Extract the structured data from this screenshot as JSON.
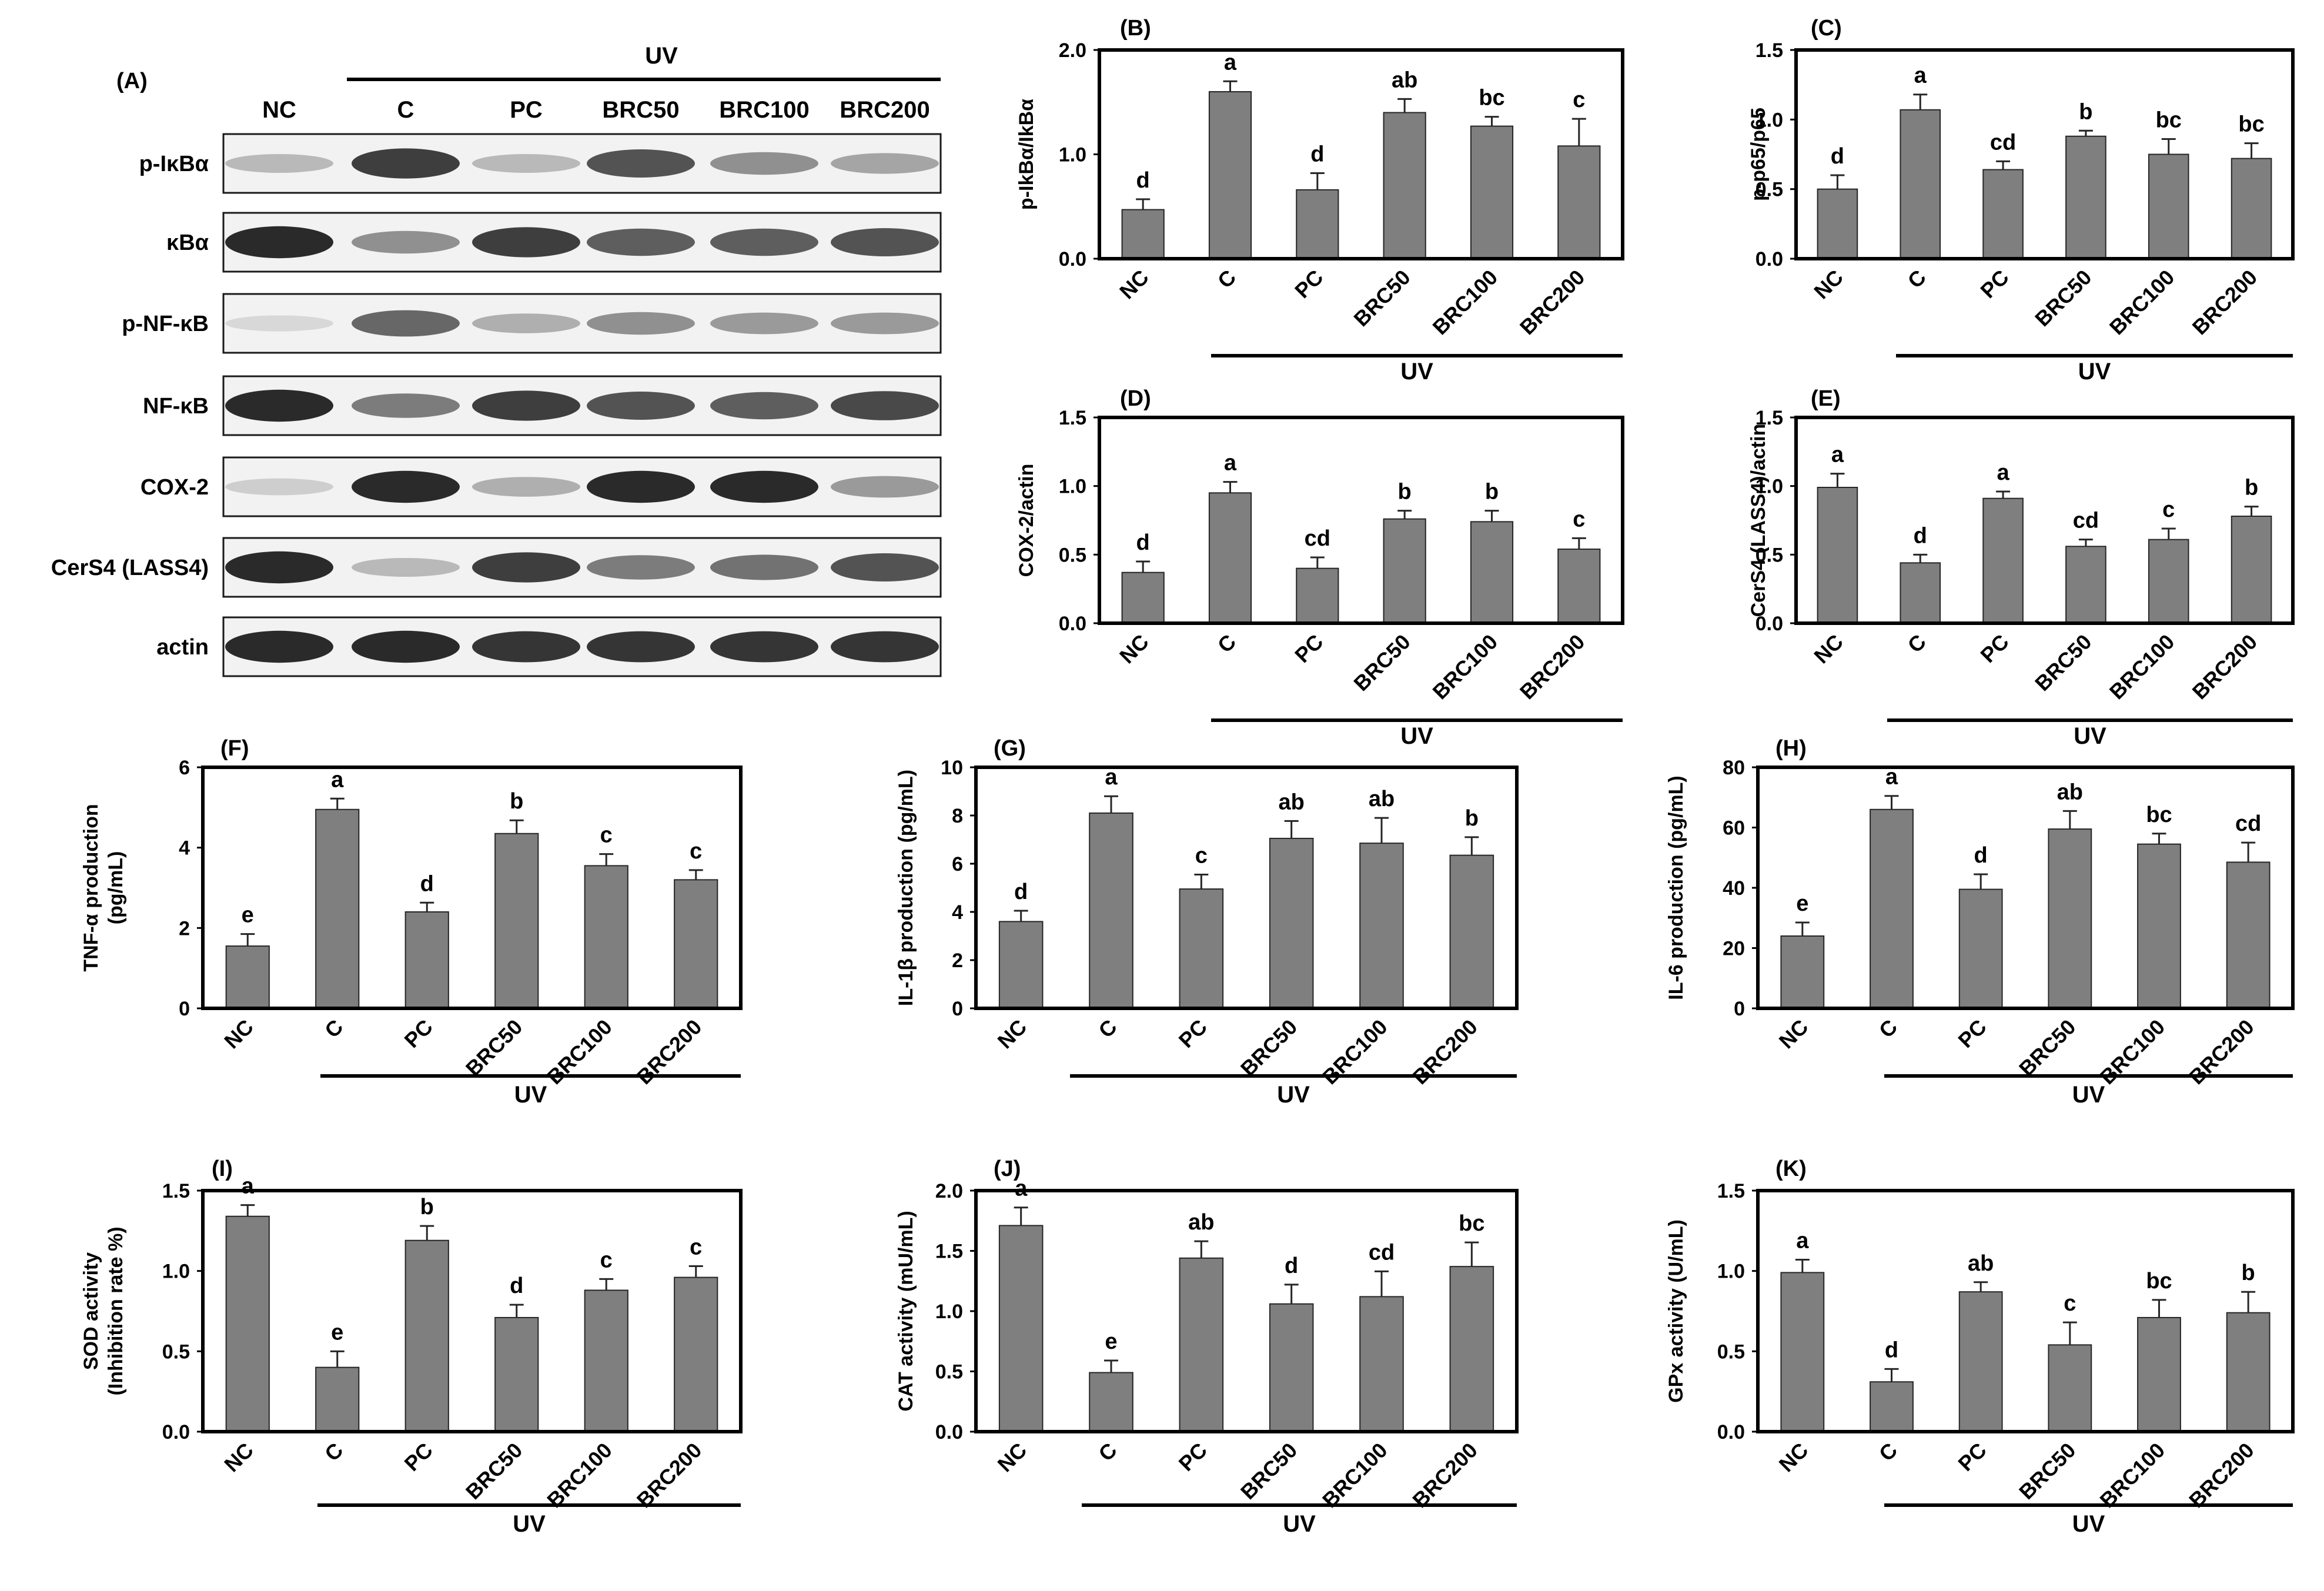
{
  "blot": {
    "panel_label": "(A)",
    "uv_label": "UV",
    "lanes": [
      "NC",
      "C",
      "PC",
      "BRC50",
      "BRC100",
      "BRC200"
    ],
    "rows": [
      {
        "label": "p-IκBα",
        "intensity": [
          0.25,
          0.85,
          0.25,
          0.75,
          0.45,
          0.35
        ]
      },
      {
        "label": "κBα",
        "intensity": [
          0.95,
          0.45,
          0.85,
          0.7,
          0.7,
          0.75
        ]
      },
      {
        "label": "p-NF-κB",
        "intensity": [
          0.1,
          0.65,
          0.3,
          0.45,
          0.4,
          0.4
        ]
      },
      {
        "label": "NF-κB",
        "intensity": [
          0.95,
          0.55,
          0.85,
          0.75,
          0.7,
          0.8
        ]
      },
      {
        "label": "COX-2",
        "intensity": [
          0.15,
          0.95,
          0.3,
          0.95,
          0.95,
          0.4
        ]
      },
      {
        "label": "CerS4 (LASS4)",
        "intensity": [
          0.95,
          0.25,
          0.85,
          0.55,
          0.6,
          0.75
        ]
      },
      {
        "label": "actin",
        "intensity": [
          0.95,
          0.95,
          0.9,
          0.9,
          0.9,
          0.9
        ]
      }
    ]
  },
  "chart_data": [
    {
      "panel": "(B)",
      "type": "bar",
      "ylabel": "p-IkBα/IkBα",
      "ylim": [
        0,
        2.0
      ],
      "yticks": [
        "0.0",
        "1.0",
        "2.0"
      ],
      "categories": [
        "NC",
        "C",
        "PC",
        "BRC50",
        "BRC100",
        "BRC200"
      ],
      "values": [
        0.47,
        1.6,
        0.66,
        1.4,
        1.27,
        1.08
      ],
      "errors": [
        0.1,
        0.1,
        0.16,
        0.13,
        0.09,
        0.26
      ],
      "letters": [
        "d",
        "a",
        "d",
        "ab",
        "bc",
        "c"
      ],
      "group_label": "UV"
    },
    {
      "panel": "(C)",
      "type": "bar",
      "ylabel": "p-p65/p65",
      "ylim": [
        0,
        1.5
      ],
      "yticks": [
        "0.0",
        "0.5",
        "1.0",
        "1.5"
      ],
      "categories": [
        "NC",
        "C",
        "PC",
        "BRC50",
        "BRC100",
        "BRC200"
      ],
      "values": [
        0.5,
        1.07,
        0.64,
        0.88,
        0.75,
        0.72
      ],
      "errors": [
        0.1,
        0.11,
        0.06,
        0.04,
        0.11,
        0.11
      ],
      "letters": [
        "d",
        "a",
        "cd",
        "b",
        "bc",
        "bc"
      ],
      "group_label": "UV"
    },
    {
      "panel": "(D)",
      "type": "bar",
      "ylabel": "COX-2/actin",
      "ylim": [
        0,
        1.5
      ],
      "yticks": [
        "0.0",
        "0.5",
        "1.0",
        "1.5"
      ],
      "categories": [
        "NC",
        "C",
        "PC",
        "BRC50",
        "BRC100",
        "BRC200"
      ],
      "values": [
        0.37,
        0.95,
        0.4,
        0.76,
        0.74,
        0.54
      ],
      "errors": [
        0.08,
        0.08,
        0.08,
        0.06,
        0.08,
        0.08
      ],
      "letters": [
        "d",
        "a",
        "cd",
        "b",
        "b",
        "c"
      ],
      "group_label": "UV"
    },
    {
      "panel": "(E)",
      "type": "bar",
      "ylabel": "CerS4 (LASS4)/actin",
      "ylim": [
        0,
        1.5
      ],
      "yticks": [
        "0.0",
        "0.5",
        "1.0",
        "1.5"
      ],
      "categories": [
        "NC",
        "C",
        "PC",
        "BRC50",
        "BRC100",
        "BRC200"
      ],
      "values": [
        0.99,
        0.44,
        0.91,
        0.56,
        0.61,
        0.78
      ],
      "errors": [
        0.1,
        0.06,
        0.05,
        0.05,
        0.08,
        0.07
      ],
      "letters": [
        "a",
        "d",
        "a",
        "cd",
        "c",
        "b"
      ],
      "group_label": "UV"
    },
    {
      "panel": "(F)",
      "type": "bar",
      "ylabel": "TNF-α production\n(pg/mL)",
      "ylim": [
        0,
        6
      ],
      "yticks": [
        "0",
        "2",
        "4",
        "6"
      ],
      "categories": [
        "NC",
        "C",
        "PC",
        "BRC50",
        "BRC100",
        "BRC200"
      ],
      "values": [
        1.55,
        4.95,
        2.4,
        4.35,
        3.55,
        3.2
      ],
      "errors": [
        0.3,
        0.27,
        0.23,
        0.33,
        0.29,
        0.24
      ],
      "letters": [
        "e",
        "a",
        "d",
        "b",
        "c",
        "c"
      ],
      "group_label": "UV"
    },
    {
      "panel": "(G)",
      "type": "bar",
      "ylabel": "IL-1β production (pg/mL)",
      "ylim": [
        0,
        10
      ],
      "yticks": [
        "0",
        "2",
        "4",
        "6",
        "8",
        "10"
      ],
      "categories": [
        "NC",
        "C",
        "PC",
        "BRC50",
        "BRC100",
        "BRC200"
      ],
      "values": [
        3.6,
        8.1,
        4.95,
        7.05,
        6.85,
        6.35
      ],
      "errors": [
        0.45,
        0.7,
        0.6,
        0.72,
        1.05,
        0.75
      ],
      "letters": [
        "d",
        "a",
        "c",
        "ab",
        "ab",
        "b"
      ],
      "group_label": "UV"
    },
    {
      "panel": "(H)",
      "type": "bar",
      "ylabel": "IL-6 production (pg/mL)",
      "ylim": [
        0,
        80
      ],
      "yticks": [
        "0",
        "20",
        "40",
        "60",
        "80"
      ],
      "categories": [
        "NC",
        "C",
        "PC",
        "BRC50",
        "BRC100",
        "BRC200"
      ],
      "values": [
        24,
        66,
        39.5,
        59.5,
        54.5,
        48.5
      ],
      "errors": [
        4.5,
        4.5,
        5.0,
        6.0,
        3.5,
        6.5
      ],
      "letters": [
        "e",
        "a",
        "d",
        "ab",
        "bc",
        "cd"
      ],
      "group_label": "UV"
    },
    {
      "panel": "(I)",
      "type": "bar",
      "ylabel": "SOD activity\n(Inhibition rate %)",
      "ylim": [
        0,
        1.5
      ],
      "yticks": [
        "0.0",
        "0.5",
        "1.0",
        "1.5"
      ],
      "categories": [
        "NC",
        "C",
        "PC",
        "BRC50",
        "BRC100",
        "BRC200"
      ],
      "values": [
        1.34,
        0.4,
        1.19,
        0.71,
        0.88,
        0.96
      ],
      "errors": [
        0.07,
        0.1,
        0.09,
        0.08,
        0.07,
        0.07
      ],
      "letters": [
        "a",
        "e",
        "b",
        "d",
        "c",
        "c"
      ],
      "group_label": "UV"
    },
    {
      "panel": "(J)",
      "type": "bar",
      "ylabel": "CAT activity (mU/mL)",
      "ylim": [
        0,
        2.0
      ],
      "yticks": [
        "0.0",
        "0.5",
        "1.0",
        "1.5",
        "2.0"
      ],
      "categories": [
        "NC",
        "C",
        "PC",
        "BRC50",
        "BRC100",
        "BRC200"
      ],
      "values": [
        1.71,
        0.49,
        1.44,
        1.06,
        1.12,
        1.37
      ],
      "errors": [
        0.15,
        0.1,
        0.14,
        0.16,
        0.21,
        0.2
      ],
      "letters": [
        "a",
        "e",
        "ab",
        "d",
        "cd",
        "bc"
      ],
      "group_label": "UV"
    },
    {
      "panel": "(K)",
      "type": "bar",
      "ylabel": "GPx activity (U/mL)",
      "ylim": [
        0,
        1.5
      ],
      "yticks": [
        "0.0",
        "0.5",
        "1.0",
        "1.5"
      ],
      "categories": [
        "NC",
        "C",
        "PC",
        "BRC50",
        "BRC100",
        "BRC200"
      ],
      "values": [
        0.99,
        0.31,
        0.87,
        0.54,
        0.71,
        0.74
      ],
      "errors": [
        0.08,
        0.08,
        0.06,
        0.14,
        0.11,
        0.13
      ],
      "letters": [
        "a",
        "d",
        "ab",
        "c",
        "bc",
        "b"
      ],
      "group_label": "UV"
    }
  ]
}
